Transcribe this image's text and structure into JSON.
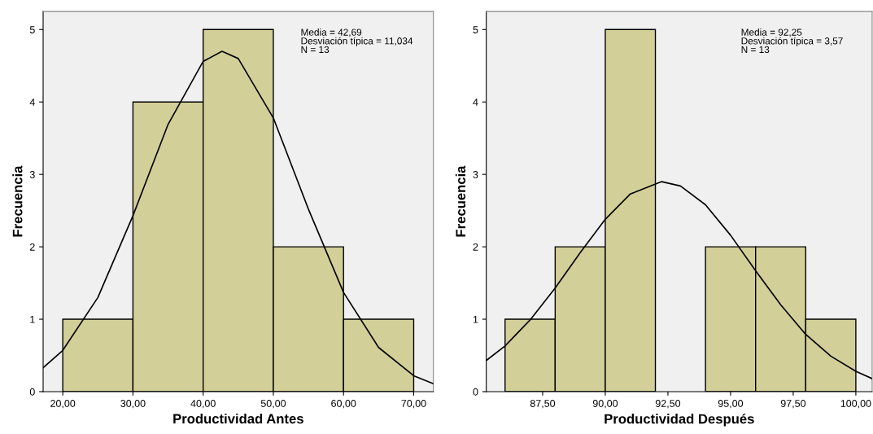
{
  "chart_data": [
    {
      "type": "histogram",
      "xlabel": "Productividad Antes",
      "ylabel": "Frecuencia",
      "annotations": [
        "Media = 42,69\nDesviación típica = 11,034\nN = 13"
      ],
      "bins": [
        20,
        30,
        40,
        50,
        60,
        70
      ],
      "values": [
        1,
        4,
        5,
        2,
        1
      ],
      "color": "#d3cf98",
      "series": [
        {
          "type": "line",
          "color": "#000000",
          "x": [
            17.2,
            20,
            25,
            30,
            35,
            40,
            42.69,
            45,
            50,
            55,
            60,
            65,
            70,
            72.8
          ],
          "values": [
            0.33,
            0.57,
            1.3,
            2.43,
            3.69,
            4.56,
            4.7,
            4.6,
            3.78,
            2.52,
            1.37,
            0.61,
            0.22,
            0.11
          ]
        }
      ],
      "xlim": [
        17.2,
        72.8
      ],
      "xticks": [
        {
          "value": 20,
          "label": "20,00"
        },
        {
          "value": 30,
          "label": "30,00"
        },
        {
          "value": 40,
          "label": "40,00"
        },
        {
          "value": 50,
          "label": "50,00"
        },
        {
          "value": 60,
          "label": "60,00"
        },
        {
          "value": 70,
          "label": "70,00"
        }
      ],
      "ylim": [
        0,
        5.25
      ],
      "yticks": [
        0,
        1,
        2,
        3,
        4,
        5
      ],
      "grid": false
    },
    {
      "type": "histogram",
      "xlabel": "Productividad Después",
      "ylabel": "Frecuencia",
      "annotations": [
        "Media = 92,25\nDesviación típica = 3,57\nN = 13"
      ],
      "bins": [
        86,
        88,
        90,
        92,
        94,
        96,
        98,
        100
      ],
      "values": [
        1,
        2,
        5,
        0,
        2,
        2,
        1
      ],
      "color": "#d3cf98",
      "series": [
        {
          "type": "line",
          "color": "#000000",
          "x": [
            85.25,
            86,
            87,
            88,
            89,
            90,
            91,
            92.25,
            93,
            94,
            95,
            96,
            97,
            98,
            99,
            100,
            100.65
          ],
          "values": [
            0.43,
            0.63,
            0.99,
            1.43,
            1.92,
            2.38,
            2.73,
            2.9,
            2.84,
            2.58,
            2.16,
            1.67,
            1.2,
            0.79,
            0.49,
            0.28,
            0.18
          ]
        }
      ],
      "xlim": [
        85.25,
        100.65
      ],
      "xticks": [
        {
          "value": 87.5,
          "label": "87,50"
        },
        {
          "value": 90,
          "label": "90,00"
        },
        {
          "value": 92.5,
          "label": "92,50"
        },
        {
          "value": 95,
          "label": "95,00"
        },
        {
          "value": 97.5,
          "label": "97,50"
        },
        {
          "value": 100,
          "label": "100,00"
        }
      ],
      "ylim": [
        0,
        5.25
      ],
      "yticks": [
        0,
        1,
        2,
        3,
        4,
        5
      ],
      "grid": false
    }
  ]
}
